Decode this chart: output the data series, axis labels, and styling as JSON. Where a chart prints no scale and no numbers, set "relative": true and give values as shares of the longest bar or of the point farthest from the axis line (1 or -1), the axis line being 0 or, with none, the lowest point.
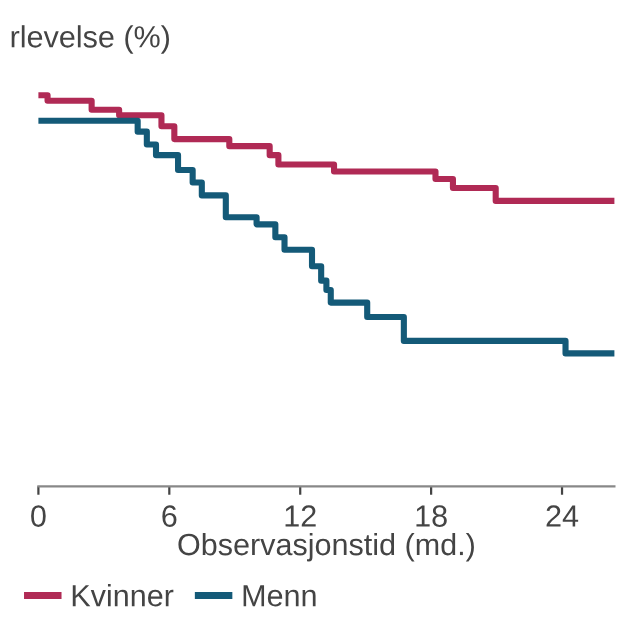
{
  "chart_data": {
    "type": "step",
    "title": "rlevelse (%)",
    "xlabel": "Observasjonstid (md.)",
    "relative": true,
    "xlim": [
      0,
      26.4
    ],
    "xticks": [
      0,
      6,
      12,
      18,
      24
    ],
    "grid": false,
    "legend": "bottom left",
    "marker": "none",
    "line_style": "solid",
    "series": [
      {
        "name": "Kvinner",
        "color": "#b02a55",
        "x": [
          0,
          0.42,
          2.44,
          3.7,
          5.64,
          6.23,
          8.75,
          10.6,
          11.0,
          13.55,
          18.2,
          19.0,
          20.96,
          26.4
        ],
        "values": [
          1.0,
          0.986,
          0.963,
          0.949,
          0.921,
          0.888,
          0.87,
          0.847,
          0.823,
          0.805,
          0.786,
          0.763,
          0.73,
          0.73
        ]
      },
      {
        "name": "Menn",
        "color": "#145a78",
        "x": [
          0,
          4.55,
          4.97,
          5.39,
          6.4,
          7.07,
          7.49,
          8.59,
          10.0,
          10.86,
          11.28,
          12.54,
          12.96,
          13.2,
          13.4,
          15.07,
          16.75,
          24.16,
          26.4
        ],
        "values": [
          0.935,
          0.907,
          0.874,
          0.847,
          0.809,
          0.777,
          0.744,
          0.688,
          0.67,
          0.637,
          0.605,
          0.563,
          0.526,
          0.502,
          0.47,
          0.433,
          0.372,
          0.34,
          0.34
        ]
      }
    ]
  }
}
